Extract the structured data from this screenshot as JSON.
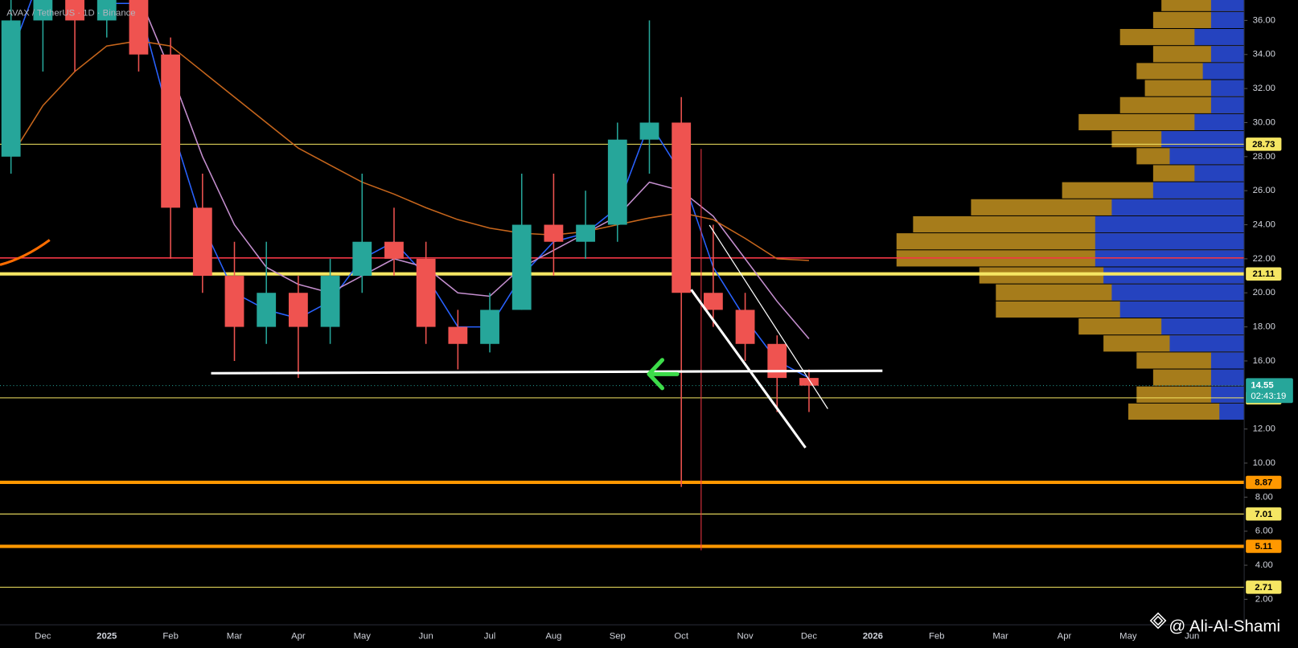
{
  "chart_data": {
    "type": "candlestick",
    "title": "AVAX / TetherUS · 1D · Binance",
    "watermark": "@ Ali-Al-Shami",
    "categories": [
      null,
      "Dec",
      null,
      "2025",
      null,
      "Feb",
      null,
      "Mar",
      null,
      "Apr",
      null,
      "May",
      null,
      "Jun",
      null,
      "Jul",
      null,
      "Aug",
      null,
      "Sep",
      null,
      "Oct",
      null,
      "Nov",
      null,
      "Dec",
      null,
      "2026",
      null,
      "Feb",
      null,
      "Mar",
      null,
      "Apr",
      null,
      "May",
      null,
      "Jun"
    ],
    "open": [
      28,
      36,
      40,
      36,
      38,
      34,
      25,
      21,
      18,
      20,
      18,
      21,
      23,
      22,
      18,
      17,
      19,
      24,
      23,
      24,
      29,
      30,
      20,
      19,
      17,
      15,
      null,
      null,
      null,
      null,
      null,
      null,
      null,
      null,
      null,
      null,
      null,
      null
    ],
    "high": [
      38,
      42,
      41,
      41,
      39,
      35,
      27,
      23,
      23,
      21,
      22,
      27,
      25,
      23,
      19,
      20,
      27,
      27,
      26,
      30,
      36,
      31.5,
      24,
      20,
      17.5,
      15.5,
      null,
      null,
      null,
      null,
      null,
      null,
      null,
      null,
      null,
      null,
      null,
      null
    ],
    "low": [
      27,
      33,
      33,
      35,
      33,
      22,
      20,
      16,
      17,
      15,
      17,
      20,
      21,
      17,
      15.5,
      16.5,
      19,
      21,
      22,
      23,
      27,
      8.6,
      18,
      16,
      13,
      13,
      null,
      null,
      null,
      null,
      null,
      null,
      null,
      null,
      null,
      null,
      null,
      null
    ],
    "close": [
      36,
      40,
      36,
      38,
      34,
      25,
      21,
      18,
      20,
      18,
      21,
      23,
      22,
      18,
      17,
      19,
      24,
      23,
      24,
      29,
      30,
      20,
      19,
      17,
      15,
      14.55,
      null,
      null,
      null,
      null,
      null,
      null,
      null,
      null,
      null,
      null,
      null,
      null
    ],
    "up_color": "#26a69a",
    "down_color": "#ef5350",
    "series": [
      {
        "color": "#2962ff",
        "values": [
          34,
          39,
          38,
          37,
          37,
          30,
          24,
          20,
          19,
          18.5,
          19.5,
          22,
          23,
          21,
          18,
          18,
          21,
          23,
          23.5,
          25,
          30,
          27,
          21.5,
          18.5,
          16,
          15,
          null,
          null,
          null,
          null,
          null,
          null,
          null,
          null,
          null,
          null,
          null,
          null
        ]
      },
      {
        "color": "#c58fcf",
        "values": [
          40,
          42,
          41,
          39,
          37.5,
          33,
          28,
          24,
          21.5,
          20.5,
          20,
          21,
          22,
          21.5,
          20,
          19.8,
          21.5,
          22.5,
          23.5,
          24.5,
          26.5,
          26,
          24.5,
          22,
          19.5,
          17.3,
          null,
          null,
          null,
          null,
          null,
          null,
          null,
          null,
          null,
          null,
          null,
          null
        ]
      },
      {
        "color": "#c7661c",
        "values": [
          28,
          31,
          33,
          34.5,
          34.8,
          34.5,
          33,
          31.5,
          30,
          28.5,
          27.5,
          26.5,
          25.8,
          25,
          24.3,
          23.8,
          23.5,
          23.4,
          23.6,
          24,
          24.4,
          24.7,
          24.3,
          23.2,
          22,
          21.9,
          null,
          null,
          null,
          null,
          null,
          null,
          null,
          null,
          null,
          null,
          null,
          null
        ]
      }
    ],
    "ylim": [
      0.5,
      37.2
    ],
    "yticks": [
      {
        "value": 2,
        "label": "2.00"
      },
      {
        "value": 4,
        "label": "4.00"
      },
      {
        "value": 6,
        "label": "6.00"
      },
      {
        "value": 8,
        "label": "8.00"
      },
      {
        "value": 10,
        "label": "10.00"
      },
      {
        "value": 12,
        "label": "12.00"
      },
      {
        "value": 16,
        "label": "16.00"
      },
      {
        "value": 18,
        "label": "18.00"
      },
      {
        "value": 20,
        "label": "20.00"
      },
      {
        "value": 22,
        "label": "22.00"
      },
      {
        "value": 24,
        "label": "24.00"
      },
      {
        "value": 26,
        "label": "26.00"
      },
      {
        "value": 28,
        "label": "28.00"
      },
      {
        "value": 30,
        "label": "30.00"
      },
      {
        "value": 32,
        "label": "32.00"
      },
      {
        "value": 34,
        "label": "34.00"
      },
      {
        "value": 36,
        "label": "36.00"
      }
    ],
    "grid": false,
    "levels": [
      {
        "value": 28.73,
        "color": "#f5e663",
        "thick": false
      },
      {
        "value": 21.11,
        "color": "#f5e663",
        "thick": true
      },
      {
        "value": 13.83,
        "color": "#f5e663",
        "thick": false
      },
      {
        "value": 8.87,
        "color": "#ff9800",
        "thick": true
      },
      {
        "value": 7.01,
        "color": "#f5e663",
        "thick": false
      },
      {
        "value": 5.11,
        "color": "#ff9800",
        "thick": true
      },
      {
        "value": 2.71,
        "color": "#f5e663",
        "thick": false
      }
    ],
    "red_level": {
      "value": 22.05,
      "color": "#f23645"
    },
    "last_price": 14.55,
    "countdown": "02:43:19",
    "volume_profile": {
      "prices": [
        13,
        14,
        15,
        16,
        17,
        18,
        19,
        20,
        21,
        22,
        23,
        24,
        25,
        26,
        27,
        28,
        29,
        30,
        31,
        32,
        33,
        34,
        35,
        36,
        37
      ],
      "total": [
        140,
        130,
        110,
        130,
        170,
        200,
        300,
        300,
        320,
        420,
        420,
        400,
        330,
        220,
        110,
        130,
        160,
        200,
        150,
        120,
        130,
        110,
        150,
        110,
        100
      ],
      "up": [
        30,
        40,
        40,
        40,
        90,
        100,
        150,
        160,
        170,
        180,
        180,
        180,
        160,
        110,
        60,
        90,
        100,
        60,
        40,
        40,
        50,
        40,
        60,
        40,
        40
      ]
    }
  }
}
